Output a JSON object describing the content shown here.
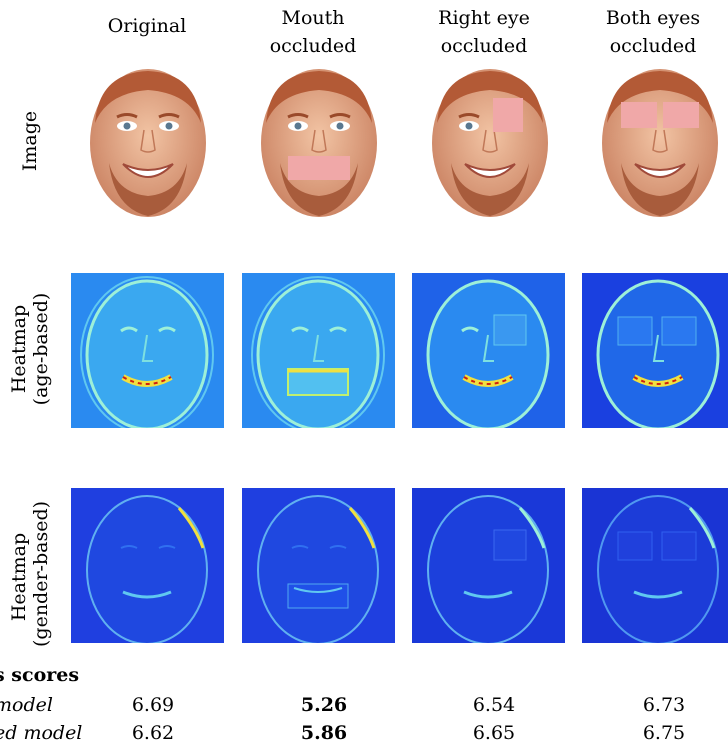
{
  "columns": [
    {
      "line1": "Original",
      "line2": ""
    },
    {
      "line1": "Mouth",
      "line2": "occluded"
    },
    {
      "line1": "Right eye",
      "line2": "occluded"
    },
    {
      "line1": "Both eyes",
      "line2": "occluded"
    }
  ],
  "rows": {
    "image": {
      "line1": "Image",
      "line2": ""
    },
    "age": {
      "line1": "Heatmap",
      "line2": "(age-based)"
    },
    "gender": {
      "line1": "Heatmap",
      "line2": "(gender-based)"
    }
  },
  "scores": {
    "title": "s scores",
    "rows": [
      {
        "label": "model",
        "values": [
          "6.69",
          "5.26",
          "6.54",
          "6.73"
        ],
        "bold_index": 1
      },
      {
        "label": "ed model",
        "values": [
          "6.62",
          "5.86",
          "6.65",
          "6.75"
        ],
        "bold_index": 1
      }
    ]
  },
  "colors": {
    "occlusion": "#f0a8a8",
    "heat_bg_age": "#2a8af0",
    "heat_bg_gender": "#1f3fe0",
    "skin": "#e8b090"
  }
}
